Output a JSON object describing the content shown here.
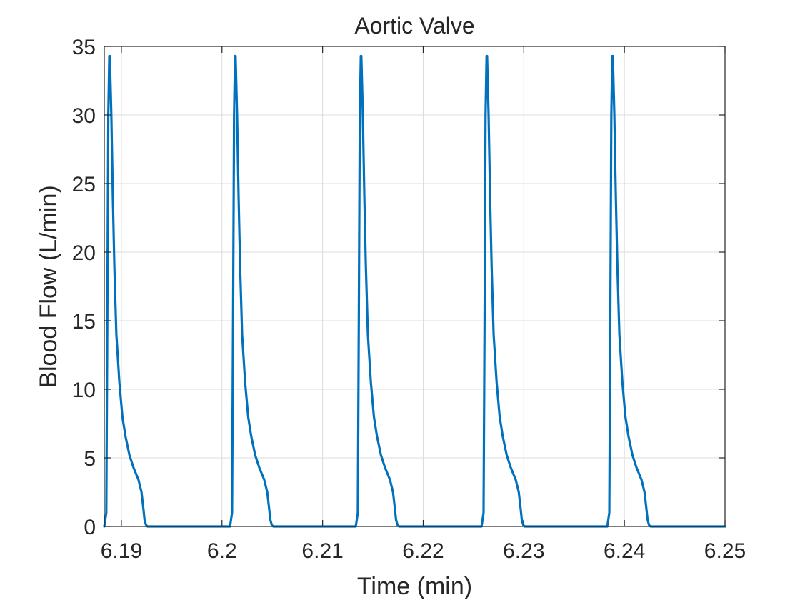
{
  "chart_data": {
    "type": "line",
    "title": "Aortic Valve",
    "xlabel": "Time (min)",
    "ylabel": "Blood Flow (L/min)",
    "xlim": [
      6.1883,
      6.25
    ],
    "ylim": [
      0,
      35
    ],
    "xticks": [
      6.19,
      6.2,
      6.21,
      6.22,
      6.23,
      6.24,
      6.25
    ],
    "xtick_labels": [
      "6.19",
      "6.2",
      "6.21",
      "6.22",
      "6.23",
      "6.24",
      "6.25"
    ],
    "yticks": [
      0,
      5,
      10,
      15,
      20,
      25,
      30,
      35
    ],
    "ytick_labels": [
      "0",
      "5",
      "10",
      "15",
      "20",
      "25",
      "30",
      "35"
    ],
    "grid": true,
    "legend": "none",
    "line_color": "#0072BD",
    "series": [
      {
        "x": [
          6.1883,
          6.1885,
          6.1886,
          6.1887,
          6.1888,
          6.18885,
          6.189,
          6.18915,
          6.1893,
          6.1895,
          6.1898,
          6.1901,
          6.1904,
          6.1908,
          6.1912,
          6.1917,
          6.192,
          6.1922,
          6.1923,
          6.19245,
          6.1926,
          6.2008,
          6.2008,
          6.201,
          6.2011,
          6.2012,
          6.2013,
          6.20135,
          6.2015,
          6.20165,
          6.2018,
          6.202,
          6.2023,
          6.2026,
          6.2029,
          6.2033,
          6.2037,
          6.2042,
          6.2045,
          6.2047,
          6.2048,
          6.20495,
          6.2051,
          6.2133,
          6.2133,
          6.2135,
          6.2136,
          6.2137,
          6.2138,
          6.21385,
          6.214,
          6.21415,
          6.2143,
          6.2145,
          6.2148,
          6.2151,
          6.2154,
          6.2158,
          6.2162,
          6.2167,
          6.217,
          6.2172,
          6.2173,
          6.21745,
          6.2176,
          6.2258,
          6.2258,
          6.226,
          6.2261,
          6.2262,
          6.2263,
          6.22635,
          6.2265,
          6.22665,
          6.2268,
          6.227,
          6.2273,
          6.2276,
          6.2279,
          6.2283,
          6.2287,
          6.2292,
          6.2295,
          6.2297,
          6.2298,
          6.22995,
          6.2301,
          6.2383,
          6.2383,
          6.2385,
          6.2386,
          6.2387,
          6.2388,
          6.23885,
          6.239,
          6.23915,
          6.2393,
          6.2395,
          6.2398,
          6.2401,
          6.2404,
          6.2408,
          6.2412,
          6.2417,
          6.242,
          6.2422,
          6.2423,
          6.24245,
          6.2426,
          6.25
        ],
        "y": [
          0,
          1,
          15,
          30,
          34.3,
          34.3,
          30,
          24,
          19,
          14,
          10.5,
          8,
          6.6,
          5.2,
          4.3,
          3.4,
          2.5,
          1.2,
          0.5,
          0.1,
          0,
          0,
          0,
          1,
          15,
          30,
          34.3,
          34.3,
          30,
          24,
          19,
          14,
          10.5,
          8,
          6.6,
          5.2,
          4.3,
          3.4,
          2.5,
          1.2,
          0.5,
          0.1,
          0,
          0,
          0,
          1,
          15,
          30,
          34.3,
          34.3,
          30,
          24,
          19,
          14,
          10.5,
          8,
          6.6,
          5.2,
          4.3,
          3.4,
          2.5,
          1.2,
          0.5,
          0.1,
          0,
          0,
          0,
          1,
          15,
          30,
          34.3,
          34.3,
          30,
          24,
          19,
          14,
          10.5,
          8,
          6.6,
          5.2,
          4.3,
          3.4,
          2.5,
          1.2,
          0.5,
          0.1,
          0,
          0,
          0,
          1,
          15,
          30,
          34.3,
          34.3,
          30,
          24,
          19,
          14,
          10.5,
          8,
          6.6,
          5.2,
          4.3,
          3.4,
          2.5,
          1.2,
          0.5,
          0.1,
          0,
          0
        ]
      }
    ]
  }
}
